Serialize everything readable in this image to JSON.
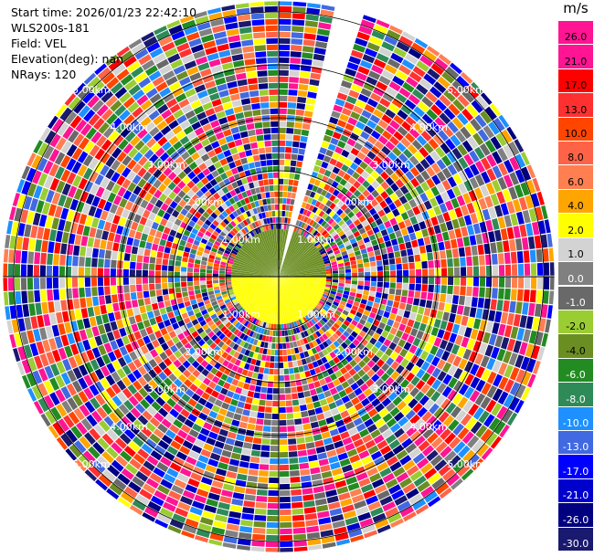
{
  "info": {
    "start_time": "Start time: 2026/01/23 22:42:10",
    "instrument": "WLS200s-181",
    "field": "Field: VEL",
    "elevation": "Elevation(deg): nan",
    "nrays": "NRays: 120"
  },
  "colorbar": {
    "unit": "m/s",
    "ticks": [
      "26.0",
      "21.0",
      "17.0",
      "13.0",
      "10.0",
      "8.0",
      "6.0",
      "4.0",
      "2.0",
      "1.0",
      "0.0",
      "-1.0",
      "-2.0",
      "-4.0",
      "-6.0",
      "-8.0",
      "-10.0",
      "-13.0",
      "-17.0",
      "-21.0",
      "-26.0",
      "-30.0"
    ],
    "colors": [
      "#ff1493",
      "#ff1493",
      "#ff0000",
      "#ff3030",
      "#ff4500",
      "#ff6347",
      "#ff7f50",
      "#ffa500",
      "#ffff00",
      "#d3d3d3",
      "#808080",
      "#696969",
      "#9acd32",
      "#6b8e23",
      "#228b22",
      "#2e8b57",
      "#1e90ff",
      "#4169e1",
      "#0000ff",
      "#0000cd",
      "#000080",
      "#191970"
    ]
  },
  "chart_data": {
    "type": "heatmap",
    "projection": "polar-ppi",
    "field": "VEL",
    "units": "m/s",
    "nrays": 120,
    "range_rings_km": [
      1,
      2,
      3,
      4,
      5
    ],
    "ring_labels": [
      "1.00km",
      "2.00km",
      "3.00km",
      "4.00km",
      "5.00km"
    ],
    "max_range_km": 5.2,
    "vmin": -30,
    "vmax": 26,
    "missing_azimuth_deg": [
      10,
      16
    ],
    "near_field": {
      "range_km": 0.9,
      "north_half_color": "#6b8e23",
      "south_half_color": "#ffff00"
    }
  }
}
